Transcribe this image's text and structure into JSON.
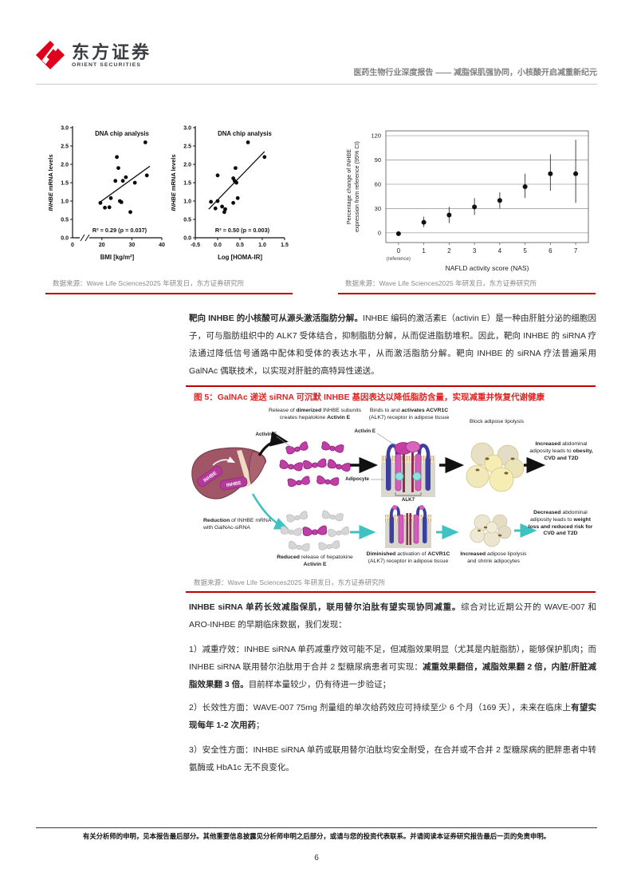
{
  "header": {
    "brand": "东方证券",
    "brand_sub": "ORIENT SECURITIES",
    "report_line": "医药生物行业深度报告 —— 减脂保肌强协同，小核酸开启减重新纪元"
  },
  "colors": {
    "accent_red": "#c00000",
    "figure_title_red": "#e02424",
    "caption_gray": "#8a8a8a",
    "teal": "#3ec2c2",
    "magenta": "#bf3fa6"
  },
  "figures": {
    "fig_bmi_caption": "数据来源：Wave Life Sciences2025 年研发日，东方证券研究所",
    "fig_nas_caption": "数据来源：Wave Life Sciences2025 年研发日，东方证券研究所",
    "fig5_title": "图 5：GalNAc 递送 siRNA 可沉默 INHBE 基因表达以降低脂肪含量，实现减重并恢复代谢健康",
    "fig5_caption": "数据来源：Wave Life Sciences2025 年研发日，东方证券研究所"
  },
  "paragraphs": {
    "p1": [
      {
        "t": "靶向 INHBE 的小核酸可从源头激活脂肪分解。",
        "b": true
      },
      {
        "t": "INHBE 编码的激活素E（activin E）是一种由肝脏分泌的细胞因子，可与脂肪组织中的 ALK7 受体结合，抑制脂肪分解，从而促进脂肪堆积。因此，靶向 INHBE 的 siRNA 疗法通过降低信号通路中配体和受体的表达水平，从而激活脂肪分解。靶向 INHBE 的 siRNA 疗法普遍采用 GalNAc 偶联技术，以实现对肝脏的高特异性递送。"
      }
    ],
    "p2": [
      {
        "t": "INHBE siRNA 单药长效减脂保肌，联用替尔泊肽有望实现协同减重。",
        "b": true
      },
      {
        "t": "综合对比近期公开的 WAVE-007 和 ARO-INHBE 的早期临床数据，我们发现："
      }
    ],
    "p3": [
      {
        "t": "1）减重疗效：INHBE siRNA 单药减重疗效可能不足，但减脂效果明显（尤其是内脏脂肪），能够保护肌肉；而 INHBE siRNA 联用替尔泊肽用于合并 2 型糖尿病患者可实现："
      },
      {
        "t": "减重效果翻倍，减脂效果翻 2 倍，内脏/肝脏减脂效果翻 3 倍。",
        "b": true
      },
      {
        "t": "目前样本量较少，仍有待进一步验证；"
      }
    ],
    "p4": [
      {
        "t": "2）长效性方面：WAVE-007 75mg 剂量组的单次给药效应可持续至少 6 个月（169 天），未来在临床上"
      },
      {
        "t": "有望实现每年 1-2 次用药",
        "b": true
      },
      {
        "t": "；"
      }
    ],
    "p5": [
      {
        "t": "3）安全性方面：INHBE siRNA 单药或联用替尔泊肽均安全耐受，在合并或不合并 2 型糖尿病的肥胖患者中转氨酶或 HbA1c 无不良变化。"
      }
    ]
  },
  "diagram": {
    "liver_gene": "INHBE",
    "labels": {
      "release": [
        {
          "t": "Release of "
        },
        {
          "t": "dimerized",
          "b": true
        },
        {
          "t": " INHBE subunits creates hepatokine "
        },
        {
          "t": "Activin E",
          "b": true
        }
      ],
      "binds": [
        {
          "t": "Binds to and "
        },
        {
          "t": "activates ACVR1C",
          "b": true
        },
        {
          "t": " (ALK7) receptor in adipose tissue"
        }
      ],
      "block": [
        {
          "t": "Block adipose lipolysis"
        }
      ],
      "increased_adiposity": [
        {
          "t": "Increased",
          "b": true
        },
        {
          "t": " abdominal adiposity leads to "
        },
        {
          "t": "obesity, CVD and T2D",
          "b": true
        }
      ],
      "reduction": [
        {
          "t": "Reduction",
          "b": true
        },
        {
          "t": " of INHBE mRNA with GalNAc-siRNA"
        }
      ],
      "reduced": [
        {
          "t": "Reduced",
          "b": true
        },
        {
          "t": " release of hepatokine "
        },
        {
          "t": "Activin E",
          "b": true
        }
      ],
      "diminished": [
        {
          "t": "Diminished",
          "b": true
        },
        {
          "t": " activation of "
        },
        {
          "t": "ACVR1C",
          "b": true
        },
        {
          "t": " (ALK7) receptor in adipose tissue"
        }
      ],
      "increased_lipolysis": [
        {
          "t": "Increased",
          "b": true
        },
        {
          "t": " adipose lipolysis and shrink adipocytes"
        }
      ],
      "decreased": [
        {
          "t": "Decreased",
          "b": true
        },
        {
          "t": " abdominal adiposity leads to "
        },
        {
          "t": "weight loss and reduced risk for CVD and T2D",
          "b": true
        }
      ]
    },
    "callouts": {
      "activin_e": "Activin E",
      "activin_e2": "Activin E",
      "adipocyte": "Adipocyte",
      "alk7": "ALK7"
    }
  },
  "chart_data": [
    {
      "type": "scatter",
      "title": "DNA chip analysis",
      "xlabel": "BMI [kg/m²]",
      "ylabel_italic": "INHBE",
      "ylabel_rest": " mRNA levels",
      "annotation": "R² = 0.29 (p = 0.037)",
      "xlim": [
        15,
        40
      ],
      "x_break": true,
      "x_origin_label": "0",
      "xticks": [
        20,
        30,
        40
      ],
      "xtick_labels": [
        "20",
        "30",
        "40"
      ],
      "ylim": [
        0,
        3
      ],
      "yticks": [
        "0.0",
        "0.5",
        "1.0",
        "1.5",
        "2.0",
        "2.5",
        "3.0"
      ],
      "points": [
        [
          19.5,
          0.95
        ],
        [
          21,
          0.82
        ],
        [
          22.5,
          0.83
        ],
        [
          23,
          1.08
        ],
        [
          24.5,
          1.55
        ],
        [
          25,
          2.2
        ],
        [
          25.5,
          1.9
        ],
        [
          26,
          1.0
        ],
        [
          26.5,
          0.97
        ],
        [
          27,
          1.55
        ],
        [
          28,
          1.65
        ],
        [
          29.5,
          0.7
        ],
        [
          31,
          1.5
        ],
        [
          34.5,
          2.6
        ],
        [
          35,
          1.7
        ]
      ],
      "trend": [
        [
          19,
          0.95
        ],
        [
          36,
          1.95
        ]
      ]
    },
    {
      "type": "scatter",
      "title": "DNA chip analysis",
      "xlabel": "Log [HOMA-IR]",
      "ylabel_italic": "INHBE",
      "ylabel_rest": " mRNA levels",
      "annotation": "R² = 0.50 (p = 0.003)",
      "xlim": [
        -0.5,
        1.5
      ],
      "x_break": false,
      "xticks": [
        -0.5,
        0.0,
        0.5,
        1.0,
        1.5
      ],
      "xtick_labels": [
        "-0.5",
        "0.0",
        "0.5",
        "1.0",
        "1.5"
      ],
      "ylim": [
        0,
        3
      ],
      "yticks": [
        "0.0",
        "0.5",
        "1.0",
        "1.5",
        "2.0",
        "2.5",
        "3.0"
      ],
      "points": [
        [
          -0.15,
          0.98
        ],
        [
          -0.05,
          0.8
        ],
        [
          0,
          1.0
        ],
        [
          0,
          1.7
        ],
        [
          0.1,
          0.85
        ],
        [
          0.15,
          0.7
        ],
        [
          0.17,
          0.78
        ],
        [
          0.35,
          0.95
        ],
        [
          0.35,
          1.62
        ],
        [
          0.38,
          1.55
        ],
        [
          0.4,
          1.9
        ],
        [
          0.42,
          1.5
        ],
        [
          0.45,
          1.08
        ],
        [
          0.68,
          2.6
        ],
        [
          1.05,
          2.2
        ]
      ],
      "trend": [
        [
          -0.2,
          0.78
        ],
        [
          1.05,
          2.35
        ]
      ]
    },
    {
      "type": "errorbar",
      "ylabel_line1": "Percentage change of INHBE",
      "ylabel_line2": "expression from reference (95% CI)",
      "xlabel": "NAFLD activity score (NAS)",
      "categories": [
        "0",
        "1",
        "2",
        "3",
        "4",
        "5",
        "6",
        "7"
      ],
      "x_first_note": "(reference)",
      "ylim": [
        -12,
        126
      ],
      "yticks": [
        0,
        30,
        60,
        90,
        120
      ],
      "values": [
        -1,
        13,
        22,
        32,
        40,
        57,
        73,
        73
      ],
      "ci_low": [
        -1,
        7,
        12,
        22,
        30,
        43,
        52,
        37
      ],
      "ci_high": [
        -1,
        20,
        32,
        43,
        50,
        73,
        97,
        115
      ]
    }
  ],
  "footer": {
    "disclaimer": "有关分析师的申明，见本报告最后部分。其他重要信息披露见分析师申明之后部分，或请与您的投资代表联系。并请阅读本证券研究报告最后一页的免责申明。",
    "page_number": "6"
  }
}
